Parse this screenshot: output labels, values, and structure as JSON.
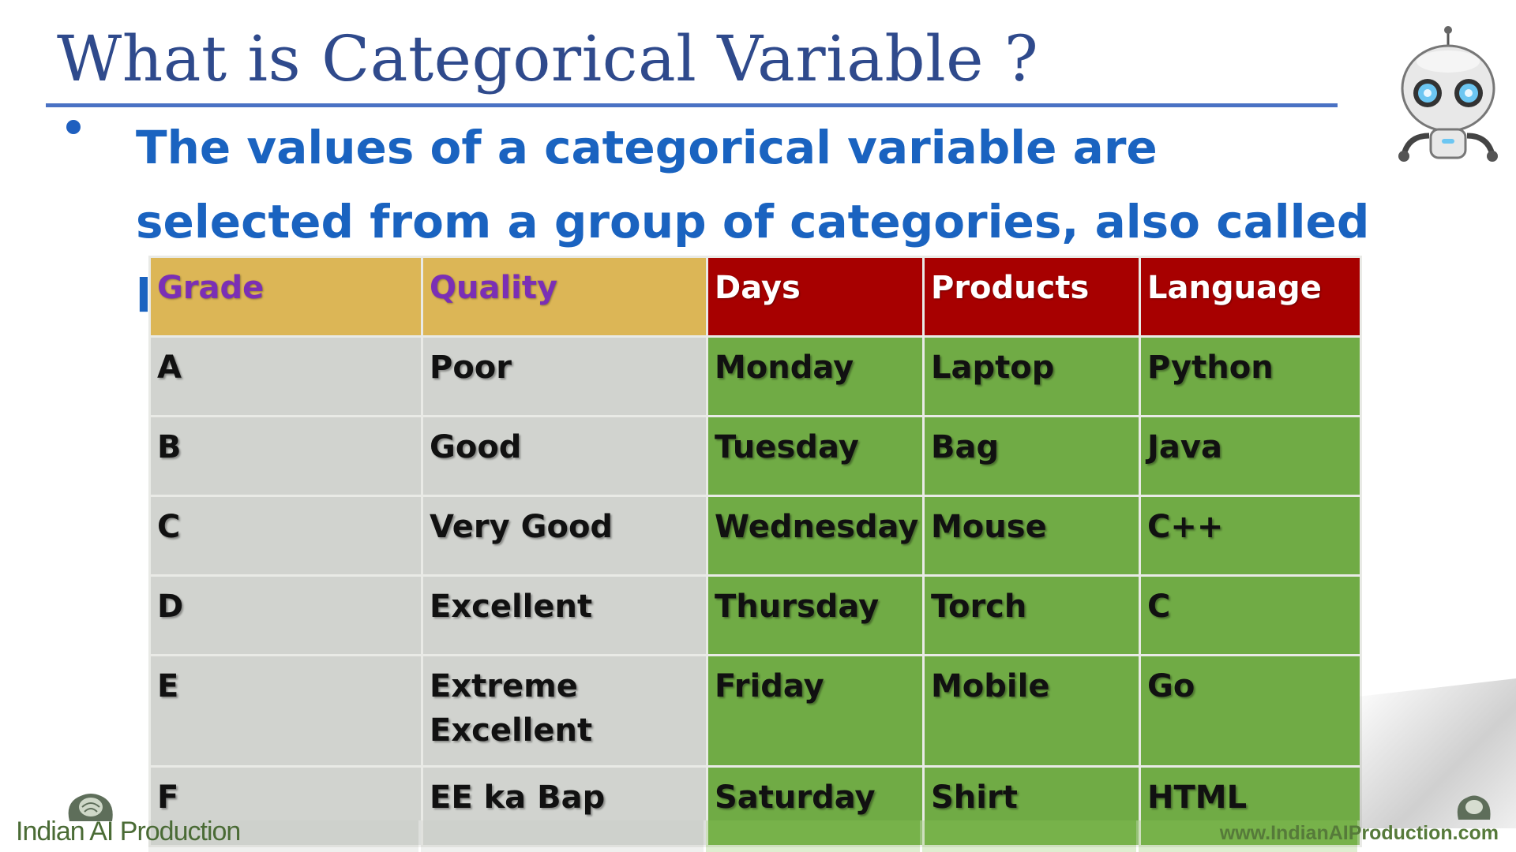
{
  "slide": {
    "title": "What is Categorical Variable ?",
    "bullet": "The values of a categorical variable are selected from a group of categories, also called labels."
  },
  "table": {
    "headers": [
      "Grade",
      "Quality",
      "Days",
      "Products",
      "Language"
    ],
    "rows": [
      [
        "A",
        "Poor",
        "Monday",
        "Laptop",
        "Python"
      ],
      [
        "B",
        "Good",
        "Tuesday",
        "Bag",
        "Java"
      ],
      [
        "C",
        "Very Good",
        "Wednesday",
        "Mouse",
        "C++"
      ],
      [
        "D",
        "Excellent",
        "Thursday",
        "Torch",
        "C"
      ],
      [
        "E",
        "Extreme Excellent",
        "Friday",
        "Mobile",
        "Go"
      ],
      [
        "F",
        "EE ka Bap",
        "Saturday",
        "Shirt",
        "HTML"
      ]
    ]
  },
  "branding": {
    "logo_text": "Indian AI Production",
    "website": "www.IndianAIProduction.com"
  },
  "colors": {
    "title": "#2f4a8c",
    "bullet_text": "#1a63c0",
    "header_gold": "#dcb656",
    "header_red": "#a70000",
    "header_purple_text": "#7b2fb5",
    "cell_grey": "#d1d3cf",
    "cell_green": "#70ab45"
  },
  "icons": [
    "robot-icon",
    "brain-head-icon"
  ]
}
